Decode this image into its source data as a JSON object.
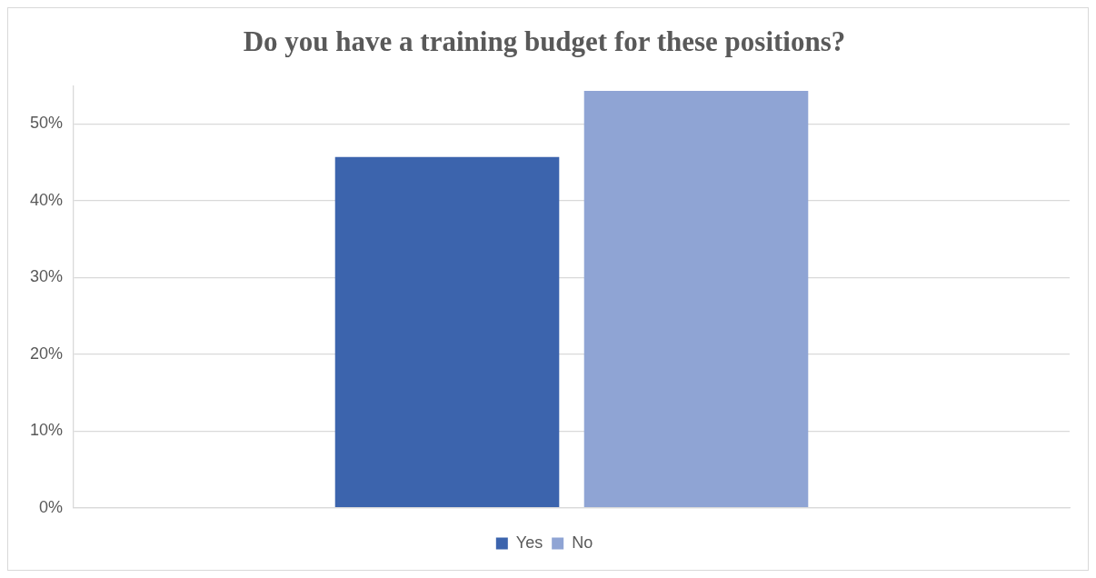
{
  "chart_data": {
    "type": "bar",
    "title": "Do you have a training budget for these positions?",
    "categories": [
      null
    ],
    "series": [
      {
        "name": "Yes",
        "color": "#3c64ad",
        "values": [
          45.7
        ]
      },
      {
        "name": "No",
        "color": "#8fa4d4",
        "values": [
          54.3
        ]
      }
    ],
    "ylim": [
      0,
      55
    ],
    "yticks": [
      {
        "value": 0,
        "label": "0%"
      },
      {
        "value": 10,
        "label": "10%"
      },
      {
        "value": 20,
        "label": "20%"
      },
      {
        "value": 30,
        "label": "30%"
      },
      {
        "value": 40,
        "label": "40%"
      },
      {
        "value": 50,
        "label": "50%"
      }
    ],
    "grid": "y",
    "legend": "bottom"
  }
}
